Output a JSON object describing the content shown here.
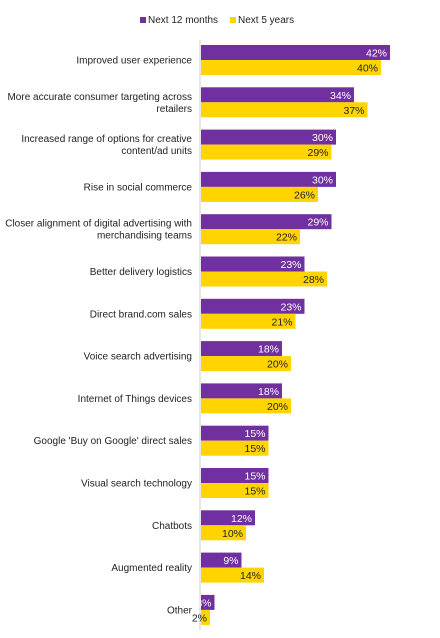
{
  "chart_data": {
    "type": "bar",
    "orientation": "horizontal",
    "categories": [
      "Improved user experience",
      "More accurate consumer targeting across retailers",
      "Increased range of options for creative content/ad units",
      "Rise in social commerce",
      "Closer alignment of digital advertising with merchandising teams",
      "Better delivery logistics",
      "Direct brand.com sales",
      "Voice search advertising",
      "Internet of Things devices",
      "Google 'Buy on Google' direct sales",
      "Visual search technology",
      "Chatbots",
      "Augmented reality",
      "Other"
    ],
    "series": [
      {
        "name": "Next 12 months",
        "color": "#7030a0",
        "values": [
          42,
          34,
          30,
          30,
          29,
          23,
          23,
          18,
          18,
          15,
          15,
          12,
          9,
          3
        ]
      },
      {
        "name": "Next 5 years",
        "color": "#ffd400",
        "values": [
          40,
          37,
          29,
          26,
          22,
          28,
          21,
          20,
          20,
          15,
          15,
          10,
          14,
          2
        ]
      }
    ],
    "value_suffix": "%",
    "xlim": [
      0,
      42
    ],
    "grid": false,
    "legend_position": "top"
  }
}
